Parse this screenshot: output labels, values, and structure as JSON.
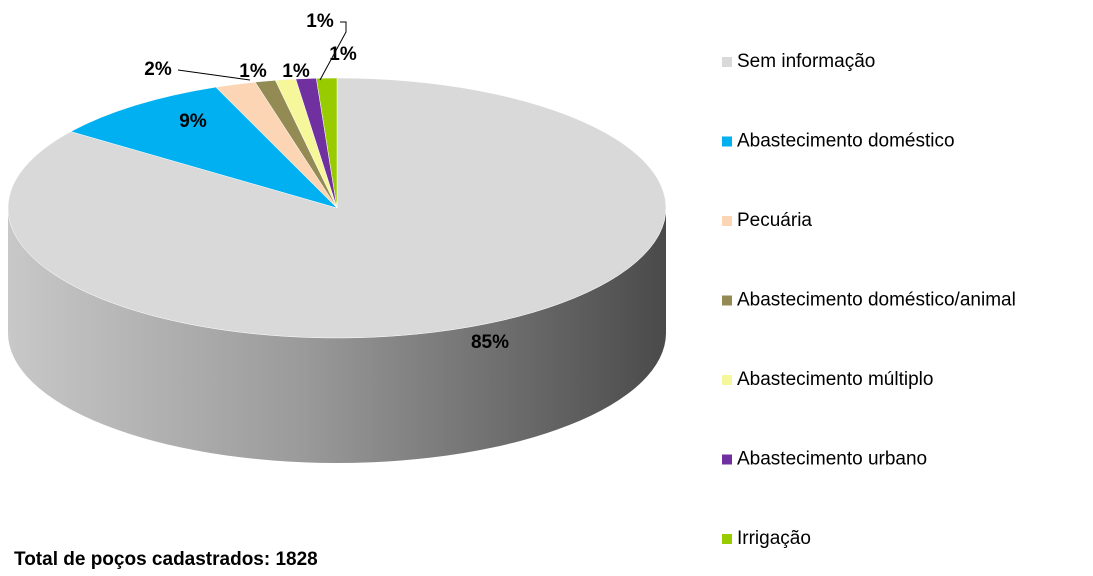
{
  "chart_data": {
    "type": "pie",
    "categories": [
      "Sem informação",
      "Abastecimento doméstico",
      "Pecuária",
      "Abastecimento doméstico/animal",
      "Abastecimento múltiplo",
      "Abastecimento urbano",
      "Irrigação"
    ],
    "values": [
      85,
      9,
      2,
      1,
      1,
      1,
      1
    ],
    "value_labels": [
      "85%",
      "9%",
      "2%",
      "1%",
      "1%",
      "1%",
      "1%"
    ],
    "colors": [
      "#d9d9d9",
      "#00b0f0",
      "#fcd5b5",
      "#948a54",
      "#f5f79a",
      "#7030a0",
      "#99cc00"
    ],
    "legend": "right",
    "annotation": "Total de poços cadastrados: 1828"
  }
}
